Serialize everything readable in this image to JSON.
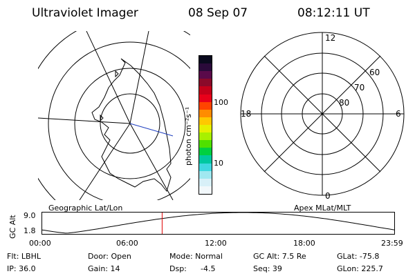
{
  "header": {
    "title": "Ultraviolet Imager",
    "date": "08 Sep 07",
    "time": "08:12:11 UT"
  },
  "colorbar": {
    "unit_label": "photon cm⁻²s⁻¹",
    "ticks": [
      "100",
      "10"
    ],
    "colors": [
      "#0a0a1e",
      "#2a0a3a",
      "#5a0a4a",
      "#8a0a2a",
      "#c4001a",
      "#e8001a",
      "#ff4400",
      "#ff8c00",
      "#ffc800",
      "#e6f000",
      "#a8f000",
      "#50e000",
      "#00d040",
      "#00c8a0",
      "#40d8e0",
      "#a0e8f0",
      "#d8f0f8",
      "#f2f8fb"
    ]
  },
  "left_map": {
    "caption": "Geographic Lat/Lon"
  },
  "right_map": {
    "caption": "Apex MLat/MLT",
    "mlt_labels": {
      "top": "12",
      "left": "18",
      "right": "6",
      "bottom": "0"
    },
    "lat_labels": [
      "60",
      "70",
      "80"
    ]
  },
  "altitude_plot": {
    "ylabel": "GC Alt",
    "y_ticks": [
      "9.0",
      "1.8"
    ],
    "x_ticks": [
      "00:00",
      "06:00",
      "12:00",
      "18:00",
      "23:59"
    ],
    "current_time_fraction": 0.341
  },
  "status": {
    "flt": "Flt: LBHL",
    "ip": "IP: 36.0",
    "door": "Door: Open",
    "gain": "Gain: 14",
    "mode": "Mode: Normal",
    "dsp": "Dsp:",
    "dsp_value": "-4.5",
    "gc_alt": "GC Alt: 7.5 Re",
    "seq": "Seq: 39",
    "glat": "GLat: -75.8",
    "glon": "GLon: 225.7"
  }
}
